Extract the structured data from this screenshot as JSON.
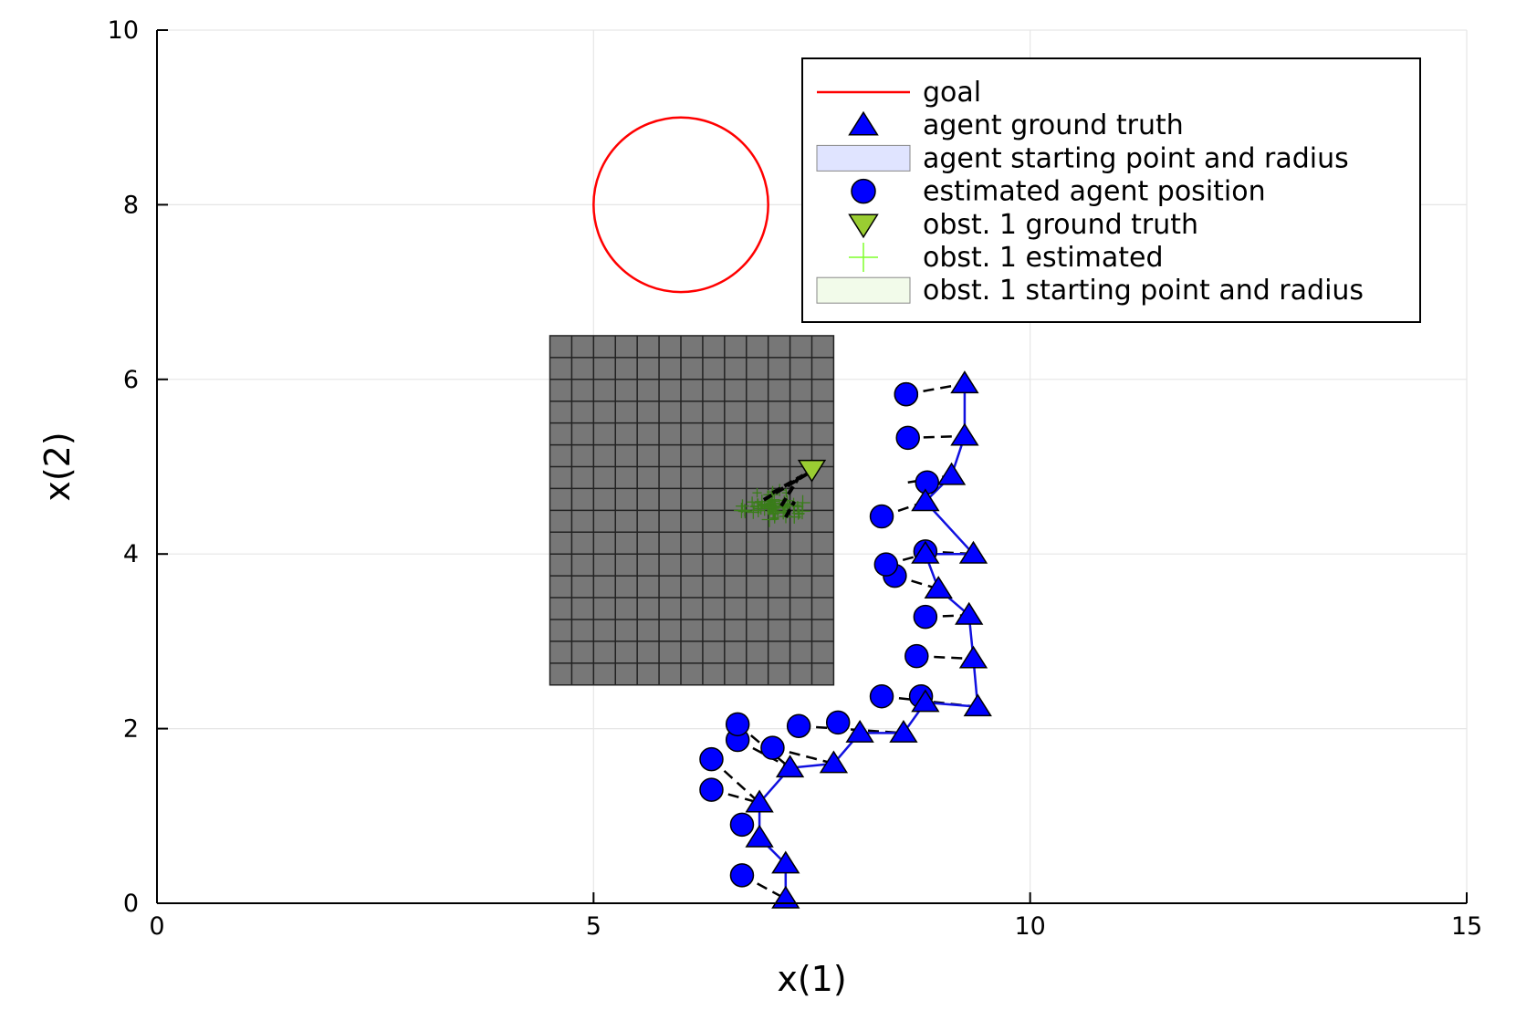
{
  "chart_data": {
    "type": "scatter",
    "title": "",
    "xlabel": "x(1)",
    "ylabel": "x(2)",
    "xlim": [
      0,
      15
    ],
    "ylim": [
      0,
      10
    ],
    "xticks": [
      0,
      5,
      10,
      15
    ],
    "yticks": [
      0,
      2,
      4,
      6,
      8,
      10
    ],
    "grid": true,
    "legend_position": "top-right",
    "colors": {
      "goal": "#ff0000",
      "agent": "#0000ff",
      "agent_line": "#1010e0",
      "obstacle_truth": "#9acd32",
      "obstacle_estimated": "#7fff2a",
      "obstacle_cloud": "#3a7d1a",
      "dash": "#000000",
      "occupancy_fill": "#777777",
      "occupancy_grid": "#222222",
      "agent_patch": "#e0e4ff",
      "obstacle_patch": "#f2fbea"
    },
    "goal": {
      "center": [
        6,
        8
      ],
      "radius": 1
    },
    "occupancy_region": {
      "x": [
        4.5,
        7.75
      ],
      "y": [
        2.5,
        6.5
      ],
      "nx": 13,
      "ny": 16
    },
    "agent_ground_truth": {
      "x": [
        7.2,
        7.2,
        6.9,
        6.9,
        7.25,
        7.75,
        8.05,
        8.55,
        8.8,
        9.4,
        9.35,
        9.3,
        8.95,
        8.8,
        9.35,
        8.8,
        9.1,
        9.25,
        9.25
      ],
      "y": [
        0.05,
        0.45,
        0.75,
        1.15,
        1.55,
        1.6,
        1.95,
        1.95,
        2.3,
        2.25,
        2.8,
        3.3,
        3.6,
        4.0,
        4.0,
        4.6,
        4.9,
        5.35,
        5.95
      ]
    },
    "estimated_agent_position": {
      "x": [
        6.7,
        6.7,
        6.35,
        6.35,
        6.65,
        7.05,
        6.65,
        7.35,
        7.8,
        8.3,
        8.75,
        8.7,
        8.8,
        8.45,
        8.8,
        8.35,
        8.82,
        8.3,
        8.6,
        8.58,
        8.58
      ],
      "y": [
        0.32,
        0.9,
        1.3,
        1.65,
        1.87,
        1.78,
        2.05,
        2.03,
        2.07,
        2.37,
        2.37,
        2.83,
        3.28,
        3.75,
        4.03,
        3.88,
        4.82,
        4.43,
        5.33,
        5.83,
        5.83
      ]
    },
    "estimation_links": [
      [
        [
          6.7,
          0.32
        ],
        [
          7.2,
          0.05
        ]
      ],
      [
        [
          6.7,
          0.9
        ],
        [
          6.9,
          0.75
        ]
      ],
      [
        [
          6.35,
          1.3
        ],
        [
          6.9,
          1.15
        ]
      ],
      [
        [
          6.35,
          1.65
        ],
        [
          6.9,
          1.15
        ]
      ],
      [
        [
          6.65,
          1.87
        ],
        [
          7.25,
          1.55
        ]
      ],
      [
        [
          6.65,
          2.05
        ],
        [
          7.25,
          1.55
        ]
      ],
      [
        [
          7.05,
          1.78
        ],
        [
          7.75,
          1.6
        ]
      ],
      [
        [
          7.35,
          2.03
        ],
        [
          8.55,
          1.95
        ]
      ],
      [
        [
          8.3,
          2.37
        ],
        [
          9.4,
          2.25
        ]
      ],
      [
        [
          8.75,
          2.37
        ],
        [
          8.8,
          2.3
        ]
      ],
      [
        [
          8.7,
          2.83
        ],
        [
          9.35,
          2.8
        ]
      ],
      [
        [
          8.8,
          3.28
        ],
        [
          9.3,
          3.3
        ]
      ],
      [
        [
          8.45,
          3.75
        ],
        [
          8.95,
          3.6
        ]
      ],
      [
        [
          8.35,
          3.88
        ],
        [
          8.8,
          4.0
        ]
      ],
      [
        [
          8.8,
          4.03
        ],
        [
          9.35,
          4.0
        ]
      ],
      [
        [
          8.3,
          4.43
        ],
        [
          8.8,
          4.6
        ]
      ],
      [
        [
          8.6,
          4.82
        ],
        [
          9.1,
          4.9
        ]
      ],
      [
        [
          8.58,
          5.33
        ],
        [
          9.25,
          5.35
        ]
      ],
      [
        [
          8.58,
          5.83
        ],
        [
          9.25,
          5.95
        ]
      ]
    ],
    "obstacle_ground_truth": {
      "x": [
        7.5
      ],
      "y": [
        4.97
      ]
    },
    "obstacle_estimate_cloud": {
      "center": [
        7.05,
        4.55
      ]
    },
    "obstacle_links": [
      [
        [
          6.95,
          4.62
        ],
        [
          7.45,
          4.92
        ]
      ],
      [
        [
          7.05,
          4.7
        ],
        [
          7.4,
          4.9
        ]
      ],
      [
        [
          7.15,
          4.55
        ],
        [
          7.35,
          4.88
        ]
      ],
      [
        [
          7.2,
          4.42
        ],
        [
          7.3,
          4.6
        ]
      ]
    ],
    "legend": [
      {
        "label": "goal",
        "marker": "line"
      },
      {
        "label": "agent ground truth",
        "marker": "triangle-up"
      },
      {
        "label": "agent starting point and radius",
        "marker": "patch-agent"
      },
      {
        "label": "estimated agent position",
        "marker": "circle"
      },
      {
        "label": "obst. 1 ground truth",
        "marker": "triangle-down"
      },
      {
        "label": "obst. 1 estimated",
        "marker": "cross"
      },
      {
        "label": "obst. 1 starting point and radius",
        "marker": "patch-obstacle"
      }
    ]
  }
}
